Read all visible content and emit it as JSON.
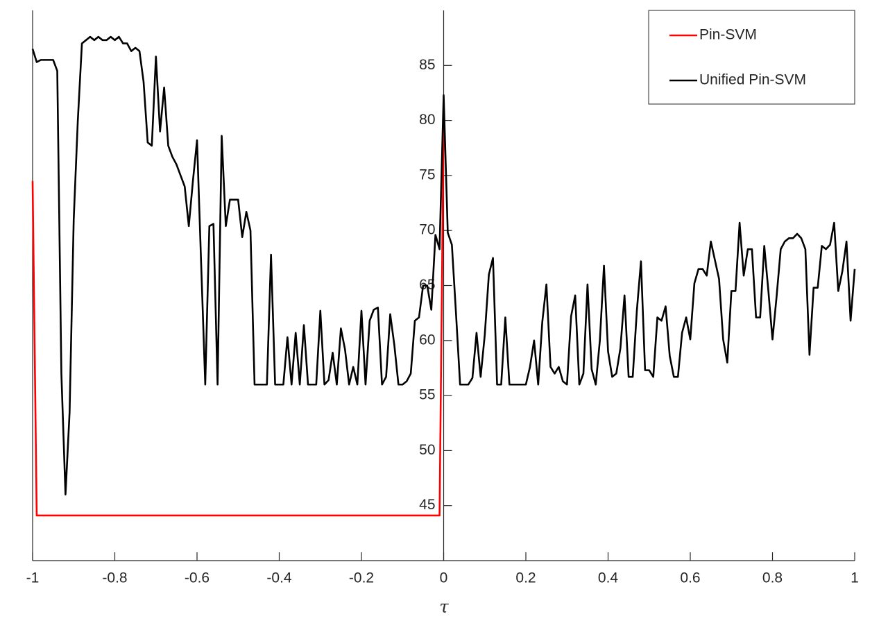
{
  "chart_data": {
    "type": "line",
    "xlabel": "τ",
    "xlim": [
      -1,
      1
    ],
    "ylim": [
      40,
      90
    ],
    "xticks": [
      -1,
      -0.8,
      -0.6,
      -0.4,
      -0.2,
      0,
      0.2,
      0.4,
      0.6,
      0.8,
      1
    ],
    "yticks": [
      45,
      50,
      55,
      60,
      65,
      70,
      75,
      80,
      85
    ],
    "legend": "top-right",
    "series": [
      {
        "name": "Pin-SVM",
        "color": "#ff0000",
        "x": [
          -1,
          -0.99,
          -0.01,
          0
        ],
        "values": [
          74.5,
          44.1,
          44.1,
          80
        ]
      },
      {
        "name": "Unified Pin-SVM",
        "color": "#000000",
        "x": [
          -1,
          -0.99,
          -0.98,
          -0.97,
          -0.96,
          -0.95,
          -0.94,
          -0.93,
          -0.92,
          -0.91,
          -0.9,
          -0.89,
          -0.88,
          -0.87,
          -0.86,
          -0.85,
          -0.84,
          -0.83,
          -0.82,
          -0.81,
          -0.8,
          -0.79,
          -0.78,
          -0.77,
          -0.76,
          -0.75,
          -0.74,
          -0.73,
          -0.72,
          -0.71,
          -0.7,
          -0.69,
          -0.68,
          -0.67,
          -0.66,
          -0.65,
          -0.64,
          -0.63,
          -0.62,
          -0.61,
          -0.6,
          -0.59,
          -0.58,
          -0.57,
          -0.56,
          -0.55,
          -0.54,
          -0.53,
          -0.52,
          -0.51,
          -0.5,
          -0.49,
          -0.48,
          -0.47,
          -0.46,
          -0.45,
          -0.44,
          -0.43,
          -0.42,
          -0.41,
          -0.4,
          -0.39,
          -0.38,
          -0.37,
          -0.36,
          -0.35,
          -0.34,
          -0.33,
          -0.32,
          -0.31,
          -0.3,
          -0.29,
          -0.28,
          -0.27,
          -0.26,
          -0.25,
          -0.24,
          -0.23,
          -0.22,
          -0.21,
          -0.2,
          -0.19,
          -0.18,
          -0.17,
          -0.16,
          -0.15,
          -0.14,
          -0.13,
          -0.12,
          -0.11,
          -0.1,
          -0.09,
          -0.08,
          -0.07,
          -0.06,
          -0.05,
          -0.04,
          -0.03,
          -0.02,
          -0.01,
          0,
          0.01,
          0.02,
          0.03,
          0.04,
          0.05,
          0.06,
          0.07,
          0.08,
          0.09,
          0.1,
          0.11,
          0.12,
          0.13,
          0.14,
          0.15,
          0.16,
          0.17,
          0.18,
          0.19,
          0.2,
          0.21,
          0.22,
          0.23,
          0.24,
          0.25,
          0.26,
          0.27,
          0.28,
          0.29,
          0.3,
          0.31,
          0.32,
          0.33,
          0.34,
          0.35,
          0.36,
          0.37,
          0.38,
          0.39,
          0.4,
          0.41,
          0.42,
          0.43,
          0.44,
          0.45,
          0.46,
          0.47,
          0.48,
          0.49,
          0.5,
          0.51,
          0.52,
          0.53,
          0.54,
          0.55,
          0.56,
          0.57,
          0.58,
          0.59,
          0.6,
          0.61,
          0.62,
          0.63,
          0.64,
          0.65,
          0.66,
          0.67,
          0.68,
          0.69,
          0.7,
          0.71,
          0.72,
          0.73,
          0.74,
          0.75,
          0.76,
          0.77,
          0.78,
          0.79,
          0.8,
          0.81,
          0.82,
          0.83,
          0.84,
          0.85,
          0.86,
          0.87,
          0.88,
          0.89,
          0.9,
          0.91,
          0.92,
          0.93,
          0.94,
          0.95,
          0.96,
          0.97,
          0.98,
          0.99,
          1
        ],
        "values": [
          86.5,
          85.3,
          85.5,
          85.5,
          85.5,
          85.5,
          84.5,
          57,
          46,
          53.5,
          71,
          80,
          87,
          87.3,
          87.6,
          87.3,
          87.6,
          87.3,
          87.3,
          87.6,
          87.3,
          87.6,
          87,
          87,
          86.3,
          86.6,
          86.3,
          83.5,
          78,
          77.7,
          85.8,
          79,
          83,
          77.7,
          76.7,
          76,
          75,
          74,
          70.4,
          74.5,
          78.2,
          67,
          56,
          70.4,
          70.6,
          56,
          78.6,
          70.4,
          72.8,
          72.8,
          72.8,
          69.4,
          71.7,
          70,
          56,
          56,
          56,
          56,
          67.8,
          56,
          56,
          56,
          60.3,
          56,
          60.7,
          56,
          61.4,
          56,
          56,
          56,
          62.7,
          56,
          56.4,
          58.9,
          56,
          61.1,
          59.2,
          56,
          57.6,
          56,
          62.7,
          56,
          61.8,
          62.8,
          63,
          56,
          56.7,
          62.4,
          59.6,
          56,
          56,
          56.3,
          57,
          61.8,
          62.1,
          65,
          65,
          62.8,
          69.6,
          68.3,
          82.3,
          69.8,
          68.7,
          62.5,
          56,
          56,
          56,
          56.6,
          60.7,
          56.7,
          60.5,
          66,
          67.5,
          56,
          56,
          62.1,
          56,
          56,
          56,
          56,
          56,
          57.6,
          60,
          56,
          61.7,
          65.1,
          57.6,
          57,
          57.6,
          56.3,
          56,
          62.2,
          64.1,
          56,
          57,
          65.1,
          57.4,
          56,
          60,
          66.8,
          59,
          56.7,
          57,
          59.3,
          64.1,
          56.7,
          56.7,
          62.7,
          67.2,
          57.3,
          57.3,
          56.7,
          62.1,
          61.8,
          63.1,
          58.6,
          56.7,
          56.7,
          60.7,
          62.1,
          60.1,
          65.2,
          66.5,
          66.5,
          65.9,
          69,
          67.3,
          65.6,
          60.1,
          58,
          64.5,
          64.5,
          70.7,
          65.9,
          68.3,
          68.3,
          62.1,
          62.1,
          68.6,
          64.5,
          60.1,
          64,
          68.3,
          69,
          69.3,
          69.3,
          69.7,
          69.3,
          68.3,
          58.7,
          64.8,
          64.8,
          68.6,
          68.3,
          68.7,
          70.7,
          64.5,
          66.3,
          69,
          61.8,
          66.5
        ]
      }
    ]
  }
}
